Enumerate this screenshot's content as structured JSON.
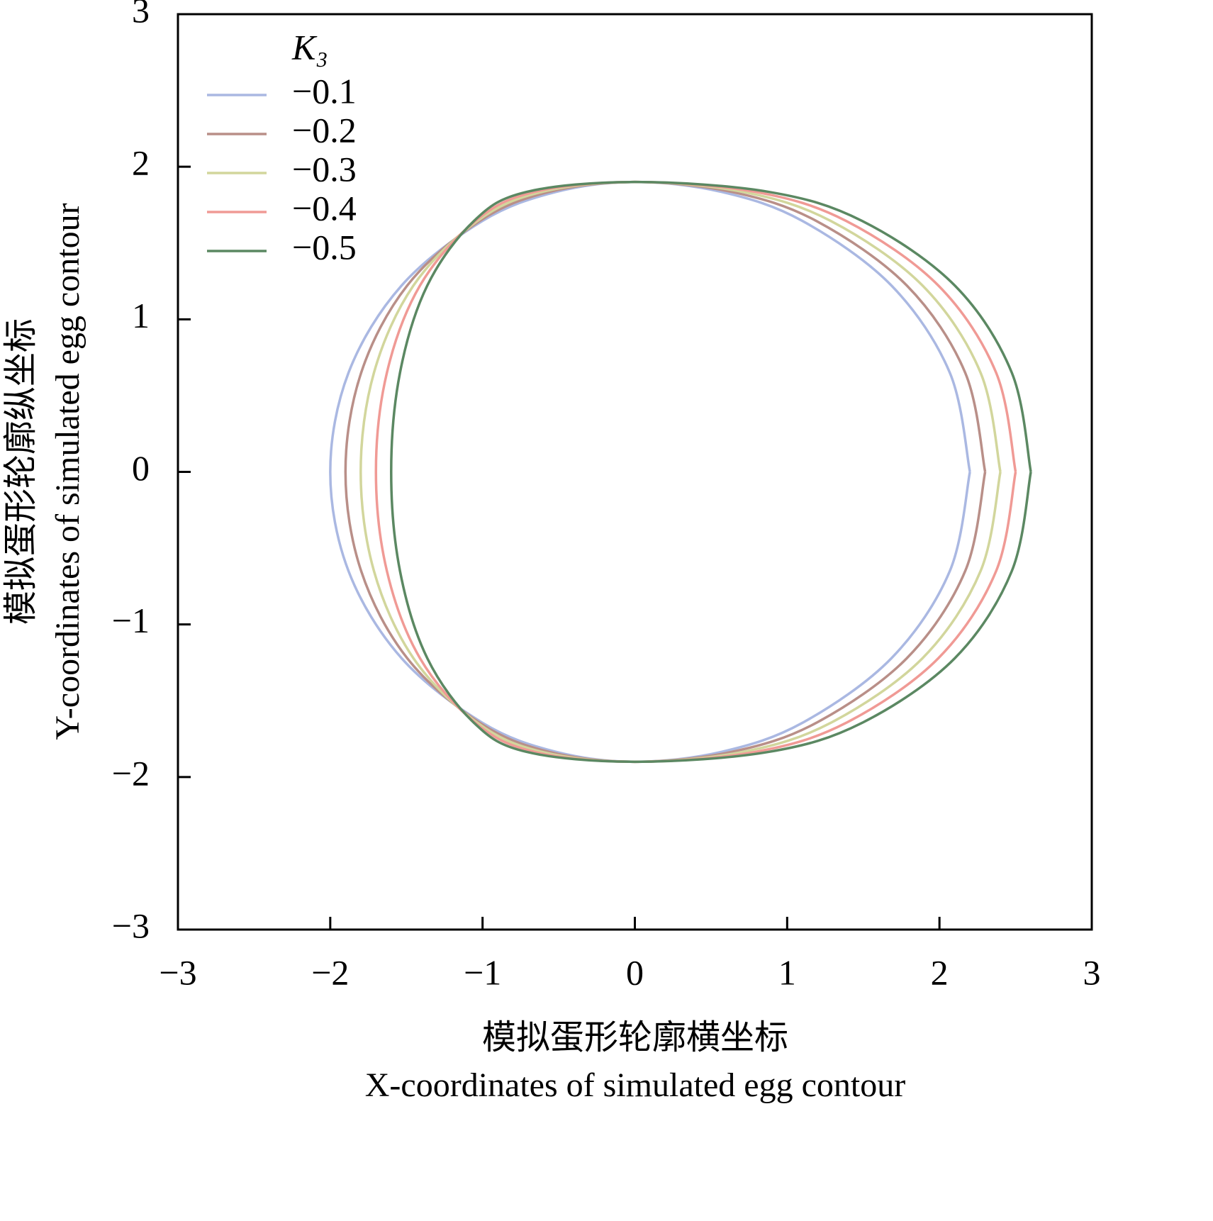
{
  "chart_data": {
    "type": "line",
    "xlabel_zh": "模拟蛋形轮廓横坐标",
    "xlabel_en": "X-coordinates of simulated egg contour",
    "ylabel_zh": "模拟蛋形轮廓纵坐标",
    "ylabel_en": "Y-coordinates of simulated egg contour",
    "legend_title": "K₃",
    "legend_position": "upper left",
    "xlim": [
      -3,
      3
    ],
    "ylim": [
      -3,
      3
    ],
    "xticks": [
      {
        "value": -3,
        "label": "−3"
      },
      {
        "value": -2,
        "label": "−2"
      },
      {
        "value": -1,
        "label": "−1"
      },
      0,
      1,
      2,
      3
    ],
    "yticks": [
      {
        "value": -3,
        "label": "−3"
      },
      {
        "value": -2,
        "label": "−2"
      },
      {
        "value": -1,
        "label": "−1"
      },
      0,
      1,
      2,
      3
    ],
    "series": [
      {
        "name": "−0.1",
        "color": "#aab8e2",
        "x": [
          2.2,
          2.068,
          1.685,
          1.1,
          0.57,
          0,
          -0.518,
          -1.0,
          -1.532,
          -1.88,
          -2.0,
          -1.88,
          -1.532,
          -1.0,
          -0.518,
          0,
          0.57,
          1.1,
          1.685,
          2.068,
          2.2
        ],
        "values": [
          0,
          0.65,
          1.221,
          1.645,
          1.835,
          1.9,
          1.835,
          1.645,
          1.221,
          0.65,
          0,
          -0.65,
          -1.221,
          -1.645,
          -1.835,
          -1.9,
          -1.835,
          -1.645,
          -1.221,
          -0.65,
          0
        ]
      },
      {
        "name": "−0.2",
        "color": "#b98f88",
        "x": [
          2.3,
          2.169,
          1.786,
          1.191,
          0.637,
          0,
          -0.563,
          -1.018,
          -1.495,
          -1.797,
          -1.9,
          -1.797,
          -1.495,
          -1.018,
          -0.563,
          0,
          0.637,
          1.191,
          1.786,
          2.169,
          2.3
        ],
        "values": [
          0,
          0.65,
          1.221,
          1.645,
          1.835,
          1.9,
          1.835,
          1.645,
          1.221,
          0.65,
          0,
          -0.65,
          -1.221,
          -1.645,
          -1.835,
          -1.9,
          -1.835,
          -1.645,
          -1.221,
          -0.65,
          0
        ]
      },
      {
        "name": "−0.3",
        "color": "#d2d69c",
        "x": [
          2.4,
          2.27,
          1.889,
          1.286,
          0.711,
          0,
          -0.611,
          -1.034,
          -1.454,
          -1.713,
          -1.8,
          -1.713,
          -1.454,
          -1.034,
          -0.611,
          0,
          0.711,
          1.286,
          1.889,
          2.27,
          2.4
        ],
        "values": [
          0,
          0.65,
          1.221,
          1.645,
          1.835,
          1.9,
          1.835,
          1.645,
          1.221,
          0.65,
          0,
          -0.65,
          -1.221,
          -1.645,
          -1.835,
          -1.9,
          -1.835,
          -1.645,
          -1.221,
          -0.65,
          0
        ]
      },
      {
        "name": "−0.4",
        "color": "#f09a95",
        "x": [
          2.5,
          2.372,
          1.993,
          1.387,
          0.793,
          0,
          -0.66,
          -1.047,
          -1.411,
          -1.628,
          -1.7,
          -1.628,
          -1.411,
          -1.047,
          -0.66,
          0,
          0.793,
          1.387,
          1.993,
          2.372,
          2.5
        ],
        "values": [
          0,
          0.65,
          1.221,
          1.645,
          1.835,
          1.9,
          1.835,
          1.645,
          1.221,
          0.65,
          0,
          -0.65,
          -1.221,
          -1.645,
          -1.835,
          -1.9,
          -1.835,
          -1.645,
          -1.221,
          -0.65,
          0
        ]
      },
      {
        "name": "−0.5",
        "color": "#5b8862",
        "x": [
          2.6,
          2.475,
          2.101,
          1.492,
          0.881,
          0,
          -0.712,
          -1.056,
          -1.363,
          -1.542,
          -1.6,
          -1.542,
          -1.363,
          -1.056,
          -0.712,
          0,
          0.881,
          1.492,
          2.101,
          2.475,
          2.6
        ],
        "values": [
          0,
          0.65,
          1.221,
          1.645,
          1.835,
          1.9,
          1.835,
          1.645,
          1.221,
          0.65,
          0,
          -0.65,
          -1.221,
          -1.645,
          -1.835,
          -1.9,
          -1.835,
          -1.645,
          -1.221,
          -0.65,
          0
        ]
      }
    ]
  }
}
